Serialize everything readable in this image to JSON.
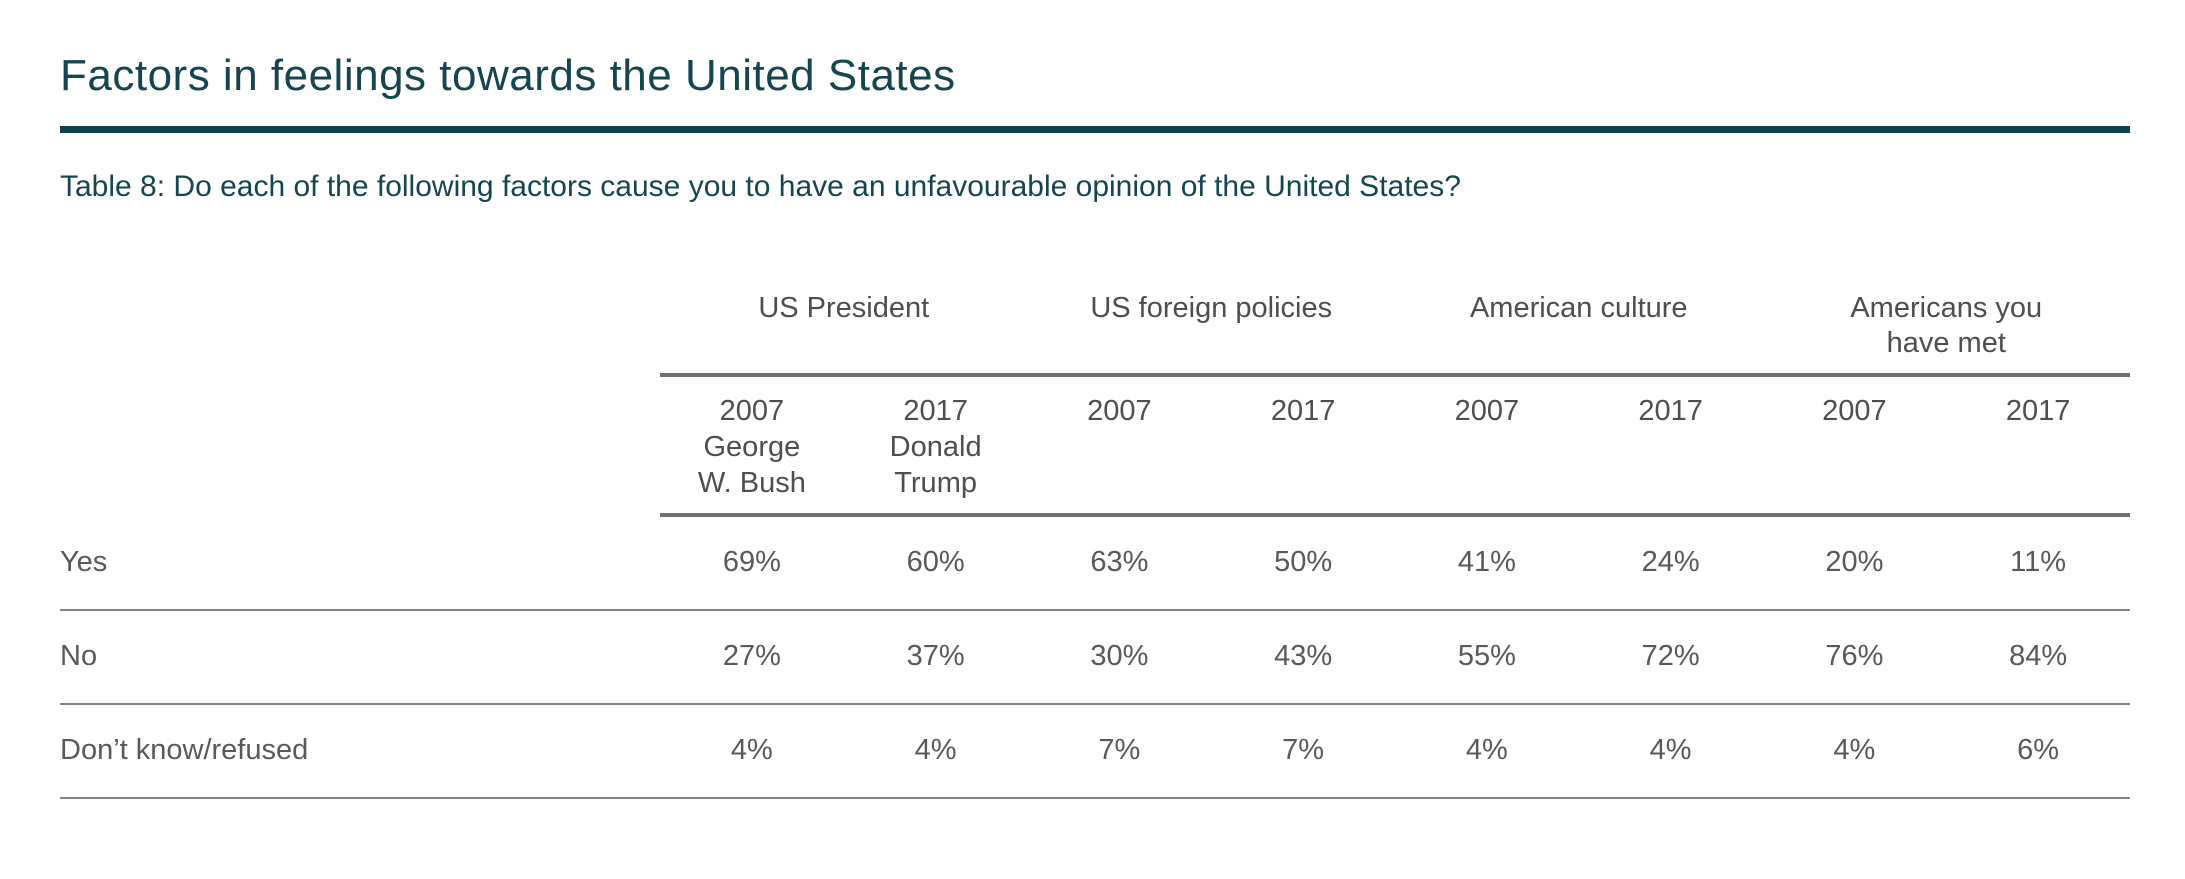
{
  "colors": {
    "accent_teal": "#15454f",
    "rule_teal": "#12414c",
    "text_gray": "#58595b",
    "line_gray": "#828487"
  },
  "chart_data": {
    "type": "table",
    "title": "Factors in feelings towards the United States",
    "subtitle": "Table 8: Do each of the following factors cause you to have an unfavourable opinion of the United States?",
    "column_groups": [
      {
        "label": "US President",
        "display": "US President",
        "subcolumns": [
          "2007 George W. Bush",
          "2017 Donald Trump"
        ]
      },
      {
        "label": "US foreign policies",
        "display": "US foreign policies",
        "subcolumns": [
          "2007",
          "2017"
        ]
      },
      {
        "label": "American culture",
        "display": "American culture",
        "subcolumns": [
          "2007",
          "2017"
        ]
      },
      {
        "label": "Americans you have met",
        "display": "Americans you\nhave met",
        "subcolumns": [
          "2007",
          "2017"
        ]
      }
    ],
    "subheader_display": [
      "2007\nGeorge\nW. Bush",
      "2017\nDonald\nTrump",
      "2007",
      "2017",
      "2007",
      "2017",
      "2007",
      "2017"
    ],
    "rows": [
      {
        "label": "Yes",
        "values": [
          "69%",
          "60%",
          "63%",
          "50%",
          "41%",
          "24%",
          "20%",
          "11%"
        ]
      },
      {
        "label": "No",
        "values": [
          "27%",
          "37%",
          "30%",
          "43%",
          "55%",
          "72%",
          "76%",
          "84%"
        ]
      },
      {
        "label": "Don’t know/refused",
        "values": [
          "4%",
          "4%",
          "7%",
          "7%",
          "4%",
          "4%",
          "4%",
          "6%"
        ]
      }
    ]
  }
}
